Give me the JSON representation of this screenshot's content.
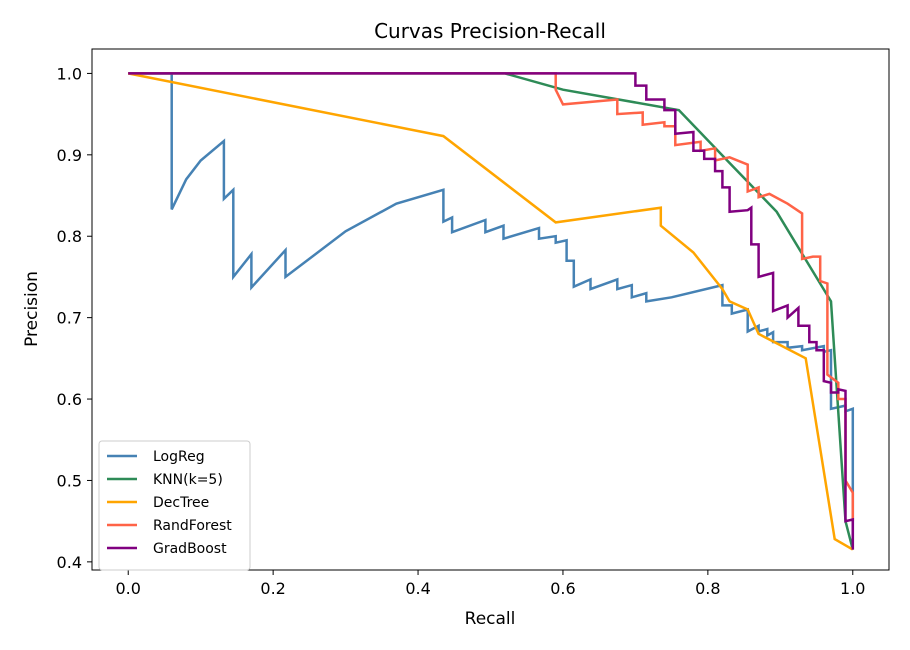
{
  "chart_data": {
    "type": "line",
    "title": "Curvas Precision-Recall",
    "xlabel": "Recall",
    "ylabel": "Precision",
    "xlim": [
      -0.05,
      1.05
    ],
    "ylim": [
      0.39,
      1.03
    ],
    "xticks": [
      "0.0",
      "0.2",
      "0.4",
      "0.6",
      "0.8",
      "1.0"
    ],
    "yticks": [
      "0.4",
      "0.5",
      "0.6",
      "0.7",
      "0.8",
      "0.9",
      "1.0"
    ],
    "grid": false,
    "legend_position": "lower-left",
    "series": [
      {
        "name": "LogReg",
        "color": "#4682B4",
        "points": [
          [
            0.0,
            1.0
          ],
          [
            0.06,
            1.0
          ],
          [
            0.06,
            0.833
          ],
          [
            0.08,
            0.87
          ],
          [
            0.1,
            0.893
          ],
          [
            0.132,
            0.917
          ],
          [
            0.132,
            0.846
          ],
          [
            0.145,
            0.857
          ],
          [
            0.145,
            0.75
          ],
          [
            0.17,
            0.778
          ],
          [
            0.17,
            0.737
          ],
          [
            0.217,
            0.783
          ],
          [
            0.217,
            0.75
          ],
          [
            0.3,
            0.806
          ],
          [
            0.37,
            0.84
          ],
          [
            0.435,
            0.857
          ],
          [
            0.435,
            0.818
          ],
          [
            0.447,
            0.823
          ],
          [
            0.447,
            0.805
          ],
          [
            0.493,
            0.82
          ],
          [
            0.493,
            0.805
          ],
          [
            0.518,
            0.813
          ],
          [
            0.518,
            0.797
          ],
          [
            0.567,
            0.81
          ],
          [
            0.567,
            0.797
          ],
          [
            0.59,
            0.8
          ],
          [
            0.59,
            0.792
          ],
          [
            0.605,
            0.795
          ],
          [
            0.605,
            0.77
          ],
          [
            0.615,
            0.77
          ],
          [
            0.615,
            0.738
          ],
          [
            0.638,
            0.747
          ],
          [
            0.638,
            0.735
          ],
          [
            0.675,
            0.747
          ],
          [
            0.675,
            0.735
          ],
          [
            0.695,
            0.74
          ],
          [
            0.695,
            0.725
          ],
          [
            0.715,
            0.73
          ],
          [
            0.715,
            0.72
          ],
          [
            0.75,
            0.725
          ],
          [
            0.82,
            0.74
          ],
          [
            0.82,
            0.715
          ],
          [
            0.833,
            0.715
          ],
          [
            0.833,
            0.705
          ],
          [
            0.855,
            0.71
          ],
          [
            0.855,
            0.683
          ],
          [
            0.87,
            0.69
          ],
          [
            0.87,
            0.683
          ],
          [
            0.882,
            0.686
          ],
          [
            0.882,
            0.678
          ],
          [
            0.89,
            0.682
          ],
          [
            0.89,
            0.67
          ],
          [
            0.91,
            0.67
          ],
          [
            0.91,
            0.663
          ],
          [
            0.93,
            0.665
          ],
          [
            0.93,
            0.66
          ],
          [
            0.96,
            0.665
          ],
          [
            0.96,
            0.658
          ],
          [
            0.97,
            0.66
          ],
          [
            0.97,
            0.588
          ],
          [
            0.99,
            0.592
          ],
          [
            0.99,
            0.585
          ],
          [
            1.0,
            0.588
          ],
          [
            1.0,
            0.415
          ]
        ]
      },
      {
        "name": "KNN(k=5)",
        "color": "#2E8B57",
        "points": [
          [
            0.0,
            1.0
          ],
          [
            0.52,
            1.0
          ],
          [
            0.6,
            0.98
          ],
          [
            0.76,
            0.955
          ],
          [
            0.83,
            0.89
          ],
          [
            0.895,
            0.83
          ],
          [
            0.97,
            0.72
          ],
          [
            0.99,
            0.45
          ],
          [
            1.0,
            0.415
          ]
        ]
      },
      {
        "name": "DecTree",
        "color": "#FFA500",
        "points": [
          [
            0.0,
            1.0
          ],
          [
            0.435,
            0.923
          ],
          [
            0.59,
            0.817
          ],
          [
            0.735,
            0.835
          ],
          [
            0.735,
            0.813
          ],
          [
            0.78,
            0.78
          ],
          [
            0.82,
            0.735
          ],
          [
            0.83,
            0.72
          ],
          [
            0.855,
            0.71
          ],
          [
            0.87,
            0.68
          ],
          [
            0.935,
            0.65
          ],
          [
            0.975,
            0.428
          ],
          [
            1.0,
            0.415
          ]
        ]
      },
      {
        "name": "RandForest",
        "color": "#FF6347",
        "points": [
          [
            0.0,
            1.0
          ],
          [
            0.59,
            1.0
          ],
          [
            0.59,
            0.98
          ],
          [
            0.6,
            0.962
          ],
          [
            0.675,
            0.968
          ],
          [
            0.675,
            0.95
          ],
          [
            0.71,
            0.952
          ],
          [
            0.71,
            0.937
          ],
          [
            0.74,
            0.94
          ],
          [
            0.74,
            0.935
          ],
          [
            0.755,
            0.935
          ],
          [
            0.755,
            0.912
          ],
          [
            0.79,
            0.916
          ],
          [
            0.79,
            0.905
          ],
          [
            0.81,
            0.908
          ],
          [
            0.81,
            0.893
          ],
          [
            0.83,
            0.897
          ],
          [
            0.855,
            0.888
          ],
          [
            0.855,
            0.855
          ],
          [
            0.87,
            0.86
          ],
          [
            0.87,
            0.848
          ],
          [
            0.885,
            0.852
          ],
          [
            0.91,
            0.84
          ],
          [
            0.93,
            0.828
          ],
          [
            0.93,
            0.772
          ],
          [
            0.945,
            0.775
          ],
          [
            0.955,
            0.775
          ],
          [
            0.955,
            0.745
          ],
          [
            0.965,
            0.742
          ],
          [
            0.965,
            0.63
          ],
          [
            0.98,
            0.62
          ],
          [
            0.98,
            0.6
          ],
          [
            0.99,
            0.6
          ],
          [
            0.99,
            0.5
          ],
          [
            1.0,
            0.485
          ],
          [
            1.0,
            0.45
          ]
        ]
      },
      {
        "name": "GradBoost",
        "color": "#800080",
        "points": [
          [
            0.0,
            1.0
          ],
          [
            0.7,
            1.0
          ],
          [
            0.7,
            0.985
          ],
          [
            0.715,
            0.985
          ],
          [
            0.715,
            0.968
          ],
          [
            0.74,
            0.968
          ],
          [
            0.74,
            0.955
          ],
          [
            0.755,
            0.955
          ],
          [
            0.755,
            0.926
          ],
          [
            0.78,
            0.928
          ],
          [
            0.78,
            0.905
          ],
          [
            0.795,
            0.905
          ],
          [
            0.795,
            0.895
          ],
          [
            0.81,
            0.895
          ],
          [
            0.81,
            0.88
          ],
          [
            0.82,
            0.88
          ],
          [
            0.82,
            0.86
          ],
          [
            0.83,
            0.86
          ],
          [
            0.83,
            0.83
          ],
          [
            0.855,
            0.832
          ],
          [
            0.86,
            0.835
          ],
          [
            0.86,
            0.79
          ],
          [
            0.87,
            0.79
          ],
          [
            0.87,
            0.75
          ],
          [
            0.89,
            0.755
          ],
          [
            0.89,
            0.708
          ],
          [
            0.91,
            0.715
          ],
          [
            0.91,
            0.7
          ],
          [
            0.925,
            0.712
          ],
          [
            0.925,
            0.69
          ],
          [
            0.94,
            0.69
          ],
          [
            0.94,
            0.67
          ],
          [
            0.95,
            0.67
          ],
          [
            0.95,
            0.66
          ],
          [
            0.96,
            0.66
          ],
          [
            0.96,
            0.622
          ],
          [
            0.97,
            0.62
          ],
          [
            0.97,
            0.608
          ],
          [
            0.98,
            0.608
          ],
          [
            0.98,
            0.612
          ],
          [
            0.99,
            0.61
          ],
          [
            0.99,
            0.45
          ],
          [
            1.0,
            0.452
          ],
          [
            1.0,
            0.415
          ]
        ]
      }
    ]
  }
}
